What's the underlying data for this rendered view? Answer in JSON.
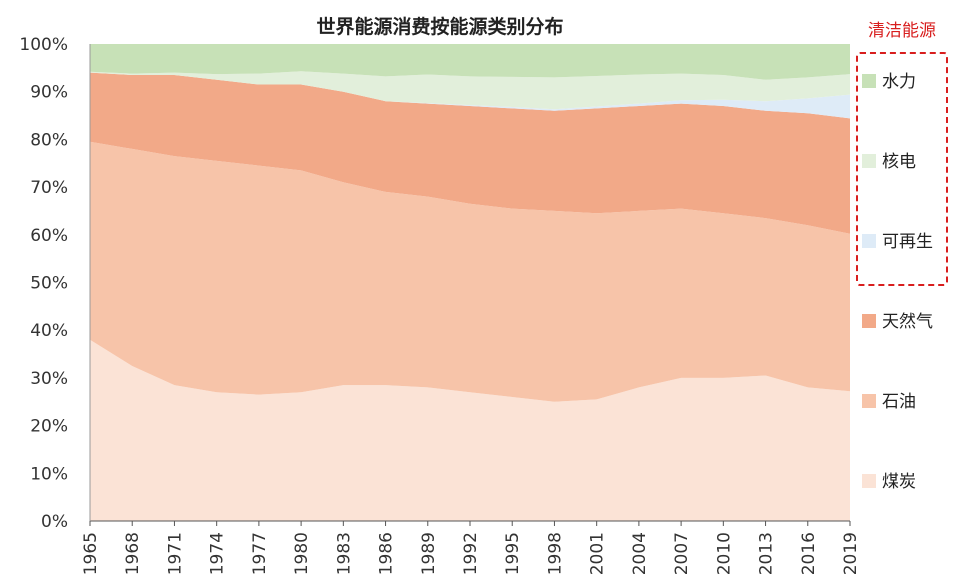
{
  "chart_data": {
    "type": "area",
    "title": "世界能源消费按能源类别分布",
    "clean_energy_label": "清洁能源",
    "xlabel": "",
    "ylabel": "",
    "ylim": [
      0,
      100
    ],
    "y_ticks": [
      "0%",
      "10%",
      "20%",
      "30%",
      "40%",
      "50%",
      "60%",
      "70%",
      "80%",
      "90%",
      "100%"
    ],
    "x_ticks": [
      "1965",
      "1968",
      "1971",
      "1974",
      "1977",
      "1980",
      "1983",
      "1986",
      "1989",
      "1992",
      "1995",
      "1998",
      "2001",
      "2004",
      "2007",
      "2010",
      "2013",
      "2016",
      "2019"
    ],
    "x": [
      1965,
      1968,
      1971,
      1974,
      1977,
      1980,
      1983,
      1986,
      1989,
      1992,
      1995,
      1998,
      2001,
      2004,
      2007,
      2010,
      2013,
      2016,
      2019
    ],
    "stacked": true,
    "series": [
      {
        "name": "煤炭",
        "color": "#fbe3d6",
        "values": [
          38,
          32.5,
          28.5,
          27,
          26.5,
          27,
          28.5,
          28.5,
          28,
          27,
          26,
          25,
          25.5,
          28,
          30,
          30,
          30.5,
          28,
          27.2
        ]
      },
      {
        "name": "石油",
        "color": "#f7c4a9",
        "values": [
          41.5,
          45.5,
          48,
          48.5,
          48,
          46.5,
          42.5,
          40.5,
          40,
          39.5,
          39.5,
          40,
          39,
          37,
          35.5,
          34.5,
          33,
          34,
          33
        ]
      },
      {
        "name": "天然气",
        "color": "#f2a988",
        "values": [
          14.5,
          15.5,
          17,
          17,
          17,
          18,
          19,
          19,
          19.5,
          20.5,
          21,
          21,
          22,
          22,
          22,
          22.5,
          22.5,
          23.5,
          24.2
        ]
      },
      {
        "name": "可再生",
        "color": "#deebf7",
        "values": [
          0,
          0,
          0,
          0,
          0,
          0,
          0,
          0,
          0.1,
          0.2,
          0.3,
          0.3,
          0.4,
          0.5,
          0.7,
          1.3,
          2.0,
          3.1,
          5.0
        ]
      },
      {
        "name": "核电",
        "color": "#e2efdb",
        "values": [
          0.2,
          0.3,
          0.5,
          1.2,
          2.3,
          2.8,
          3.8,
          5.2,
          6.0,
          6.0,
          6.3,
          6.7,
          6.4,
          6.1,
          5.6,
          5.2,
          4.5,
          4.4,
          4.3
        ]
      },
      {
        "name": "水力",
        "color": "#c7e1b7",
        "values": [
          5.8,
          6.2,
          6.0,
          6.3,
          6.2,
          5.7,
          6.2,
          6.8,
          6.4,
          6.8,
          6.9,
          7.0,
          6.7,
          6.4,
          6.2,
          6.5,
          7.5,
          7.0,
          6.3
        ]
      }
    ],
    "legend": {
      "position": "right",
      "clean_group": [
        "水力",
        "核电",
        "可再生"
      ],
      "other_group": [
        "天然气",
        "石油",
        "煤炭"
      ]
    }
  }
}
